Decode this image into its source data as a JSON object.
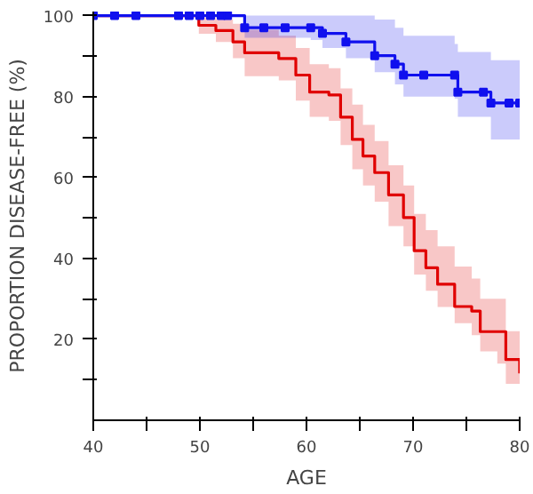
{
  "chart_data": {
    "type": "step",
    "xlabel": "AGE",
    "ylabel": "PROPORTION DISEASE-FREE (%)",
    "xlim": [
      40,
      80
    ],
    "ylim": [
      0,
      101
    ],
    "xticks": [
      40,
      {
        "value": 45,
        "label": null
      },
      50,
      {
        "value": 55,
        "label": null
      },
      60,
      {
        "value": 65,
        "label": null
      },
      70,
      {
        "value": 75,
        "label": null
      },
      80
    ],
    "yticks": [
      {
        "value": 10,
        "label": null
      },
      20,
      {
        "value": 30,
        "label": null
      },
      40,
      {
        "value": 50,
        "label": null
      },
      60,
      {
        "value": 70,
        "label": null
      },
      80,
      {
        "value": 90,
        "label": null
      },
      100
    ],
    "grid": false,
    "series": [
      {
        "color": "#e00000",
        "marker": "none",
        "x": [
          40,
          48.8,
          49.9,
          51.5,
          53.1,
          54.2,
          57.4,
          59.0,
          60.3,
          62.1,
          63.2,
          64.3,
          65.3,
          66.4,
          67.7,
          69.1,
          70.1,
          71.2,
          72.3,
          73.9,
          75.5,
          76.3,
          77.9,
          78.7,
          80
        ],
        "values": [
          100,
          100,
          97.6,
          96.3,
          93.5,
          90.8,
          89.4,
          85.3,
          81.1,
          80.4,
          74.9,
          69.4,
          65.3,
          61.2,
          55.7,
          50.1,
          41.9,
          37.7,
          33.6,
          28.1,
          27.0,
          21.9,
          21.9,
          15.0,
          11.6
        ],
        "upper": [
          100,
          100,
          99.5,
          99,
          98,
          96.5,
          95,
          92,
          88,
          87,
          82,
          78,
          73,
          69,
          63,
          58,
          51,
          47,
          43,
          38,
          35,
          30,
          30,
          22,
          20.5
        ],
        "lower": [
          100,
          100,
          95.5,
          93.5,
          89.5,
          85,
          84,
          79,
          75,
          74,
          68,
          62,
          58,
          54,
          48,
          43,
          36,
          32,
          28,
          24,
          21,
          17,
          14,
          9,
          6
        ]
      },
      {
        "color": "#1010ee",
        "marker": "square",
        "x": [
          40,
          42,
          44,
          48,
          49,
          50,
          51,
          52,
          52.6,
          54.2,
          56,
          58,
          60.4,
          61.5,
          63.7,
          66.4,
          68.3,
          69.1,
          71,
          73.9,
          74.2,
          76.6,
          77.3,
          79,
          80
        ],
        "values": [
          100,
          100,
          100,
          100,
          100,
          100,
          100,
          100,
          100,
          97,
          97,
          97,
          97,
          95.6,
          93.5,
          90.1,
          88,
          85.3,
          85.3,
          85.3,
          81.1,
          81.1,
          78.4,
          78.4,
          78.4
        ],
        "upper": [
          100,
          100,
          100,
          100,
          100,
          100,
          100,
          100,
          100,
          100,
          100,
          100,
          100,
          100,
          100,
          99,
          97,
          95,
          95,
          93,
          91,
          91,
          89,
          89,
          89
        ],
        "lower": [
          100,
          100,
          100,
          100,
          100,
          100,
          100,
          100,
          100,
          94.5,
          94.5,
          94.5,
          94,
          92,
          89.5,
          86,
          83,
          80,
          80,
          79.5,
          75,
          75,
          69.4,
          69.4,
          69.4
        ]
      }
    ]
  }
}
